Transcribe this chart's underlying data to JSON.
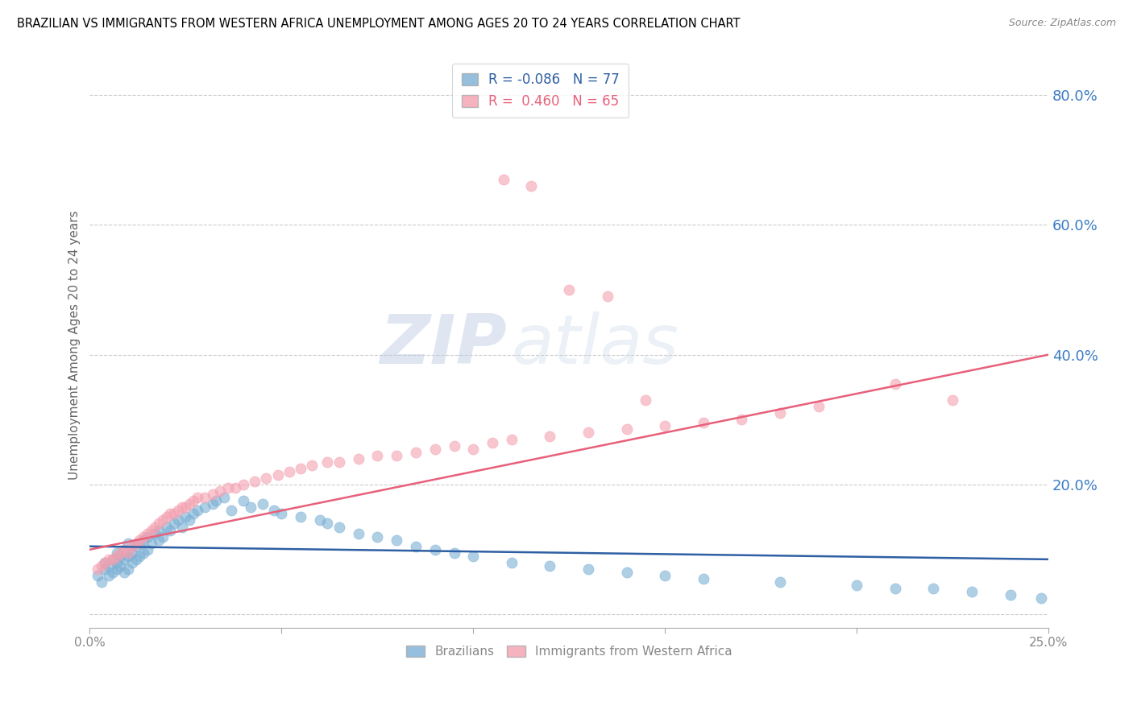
{
  "title": "BRAZILIAN VS IMMIGRANTS FROM WESTERN AFRICA UNEMPLOYMENT AMONG AGES 20 TO 24 YEARS CORRELATION CHART",
  "source": "Source: ZipAtlas.com",
  "ylabel": "Unemployment Among Ages 20 to 24 years",
  "xlim": [
    0.0,
    0.25
  ],
  "ylim": [
    -0.02,
    0.85
  ],
  "yticks": [
    0.0,
    0.2,
    0.4,
    0.6,
    0.8
  ],
  "ytick_labels": [
    "",
    "20.0%",
    "40.0%",
    "60.0%",
    "80.0%"
  ],
  "legend_blue_R": "-0.086",
  "legend_blue_N": "77",
  "legend_pink_R": "0.460",
  "legend_pink_N": "65",
  "legend_blue_label": "Brazilians",
  "legend_pink_label": "Immigrants from Western Africa",
  "blue_color": "#7BAFD4",
  "pink_color": "#F4A0B0",
  "blue_line_color": "#2E5FA3",
  "pink_line_color": "#E8607A",
  "watermark_zip": "ZIP",
  "watermark_atlas": "atlas",
  "blue_scatter_x": [
    0.002,
    0.003,
    0.004,
    0.004,
    0.005,
    0.005,
    0.006,
    0.006,
    0.007,
    0.007,
    0.007,
    0.008,
    0.008,
    0.009,
    0.009,
    0.009,
    0.01,
    0.01,
    0.01,
    0.011,
    0.011,
    0.012,
    0.012,
    0.013,
    0.013,
    0.014,
    0.014,
    0.015,
    0.015,
    0.016,
    0.017,
    0.018,
    0.018,
    0.019,
    0.02,
    0.021,
    0.022,
    0.023,
    0.024,
    0.025,
    0.026,
    0.027,
    0.028,
    0.03,
    0.032,
    0.033,
    0.035,
    0.037,
    0.04,
    0.042,
    0.045,
    0.048,
    0.05,
    0.055,
    0.06,
    0.062,
    0.065,
    0.07,
    0.075,
    0.08,
    0.085,
    0.09,
    0.095,
    0.1,
    0.11,
    0.12,
    0.13,
    0.14,
    0.15,
    0.16,
    0.18,
    0.2,
    0.21,
    0.22,
    0.23,
    0.24,
    0.248
  ],
  "blue_scatter_y": [
    0.06,
    0.05,
    0.07,
    0.08,
    0.06,
    0.075,
    0.065,
    0.085,
    0.07,
    0.08,
    0.095,
    0.075,
    0.09,
    0.065,
    0.085,
    0.1,
    0.07,
    0.09,
    0.11,
    0.08,
    0.095,
    0.085,
    0.105,
    0.09,
    0.11,
    0.095,
    0.115,
    0.1,
    0.12,
    0.11,
    0.125,
    0.115,
    0.13,
    0.12,
    0.135,
    0.13,
    0.14,
    0.145,
    0.135,
    0.15,
    0.145,
    0.155,
    0.16,
    0.165,
    0.17,
    0.175,
    0.18,
    0.16,
    0.175,
    0.165,
    0.17,
    0.16,
    0.155,
    0.15,
    0.145,
    0.14,
    0.135,
    0.125,
    0.12,
    0.115,
    0.105,
    0.1,
    0.095,
    0.09,
    0.08,
    0.075,
    0.07,
    0.065,
    0.06,
    0.055,
    0.05,
    0.045,
    0.04,
    0.04,
    0.035,
    0.03,
    0.025
  ],
  "pink_scatter_x": [
    0.002,
    0.003,
    0.004,
    0.005,
    0.006,
    0.007,
    0.008,
    0.009,
    0.01,
    0.011,
    0.012,
    0.013,
    0.014,
    0.015,
    0.016,
    0.017,
    0.018,
    0.019,
    0.02,
    0.021,
    0.022,
    0.023,
    0.024,
    0.025,
    0.026,
    0.027,
    0.028,
    0.03,
    0.032,
    0.034,
    0.036,
    0.038,
    0.04,
    0.043,
    0.046,
    0.049,
    0.052,
    0.055,
    0.058,
    0.062,
    0.065,
    0.07,
    0.075,
    0.08,
    0.085,
    0.09,
    0.095,
    0.1,
    0.105,
    0.11,
    0.12,
    0.13,
    0.14,
    0.15,
    0.16,
    0.17,
    0.18,
    0.19,
    0.21,
    0.225,
    0.108,
    0.115,
    0.125,
    0.135,
    0.145
  ],
  "pink_scatter_y": [
    0.07,
    0.075,
    0.08,
    0.085,
    0.085,
    0.09,
    0.095,
    0.1,
    0.095,
    0.105,
    0.11,
    0.115,
    0.12,
    0.125,
    0.13,
    0.135,
    0.14,
    0.145,
    0.15,
    0.155,
    0.155,
    0.16,
    0.165,
    0.165,
    0.17,
    0.175,
    0.18,
    0.18,
    0.185,
    0.19,
    0.195,
    0.195,
    0.2,
    0.205,
    0.21,
    0.215,
    0.22,
    0.225,
    0.23,
    0.235,
    0.235,
    0.24,
    0.245,
    0.245,
    0.25,
    0.255,
    0.26,
    0.255,
    0.265,
    0.27,
    0.275,
    0.28,
    0.285,
    0.29,
    0.295,
    0.3,
    0.31,
    0.32,
    0.355,
    0.33,
    0.67,
    0.66,
    0.5,
    0.49,
    0.33
  ]
}
